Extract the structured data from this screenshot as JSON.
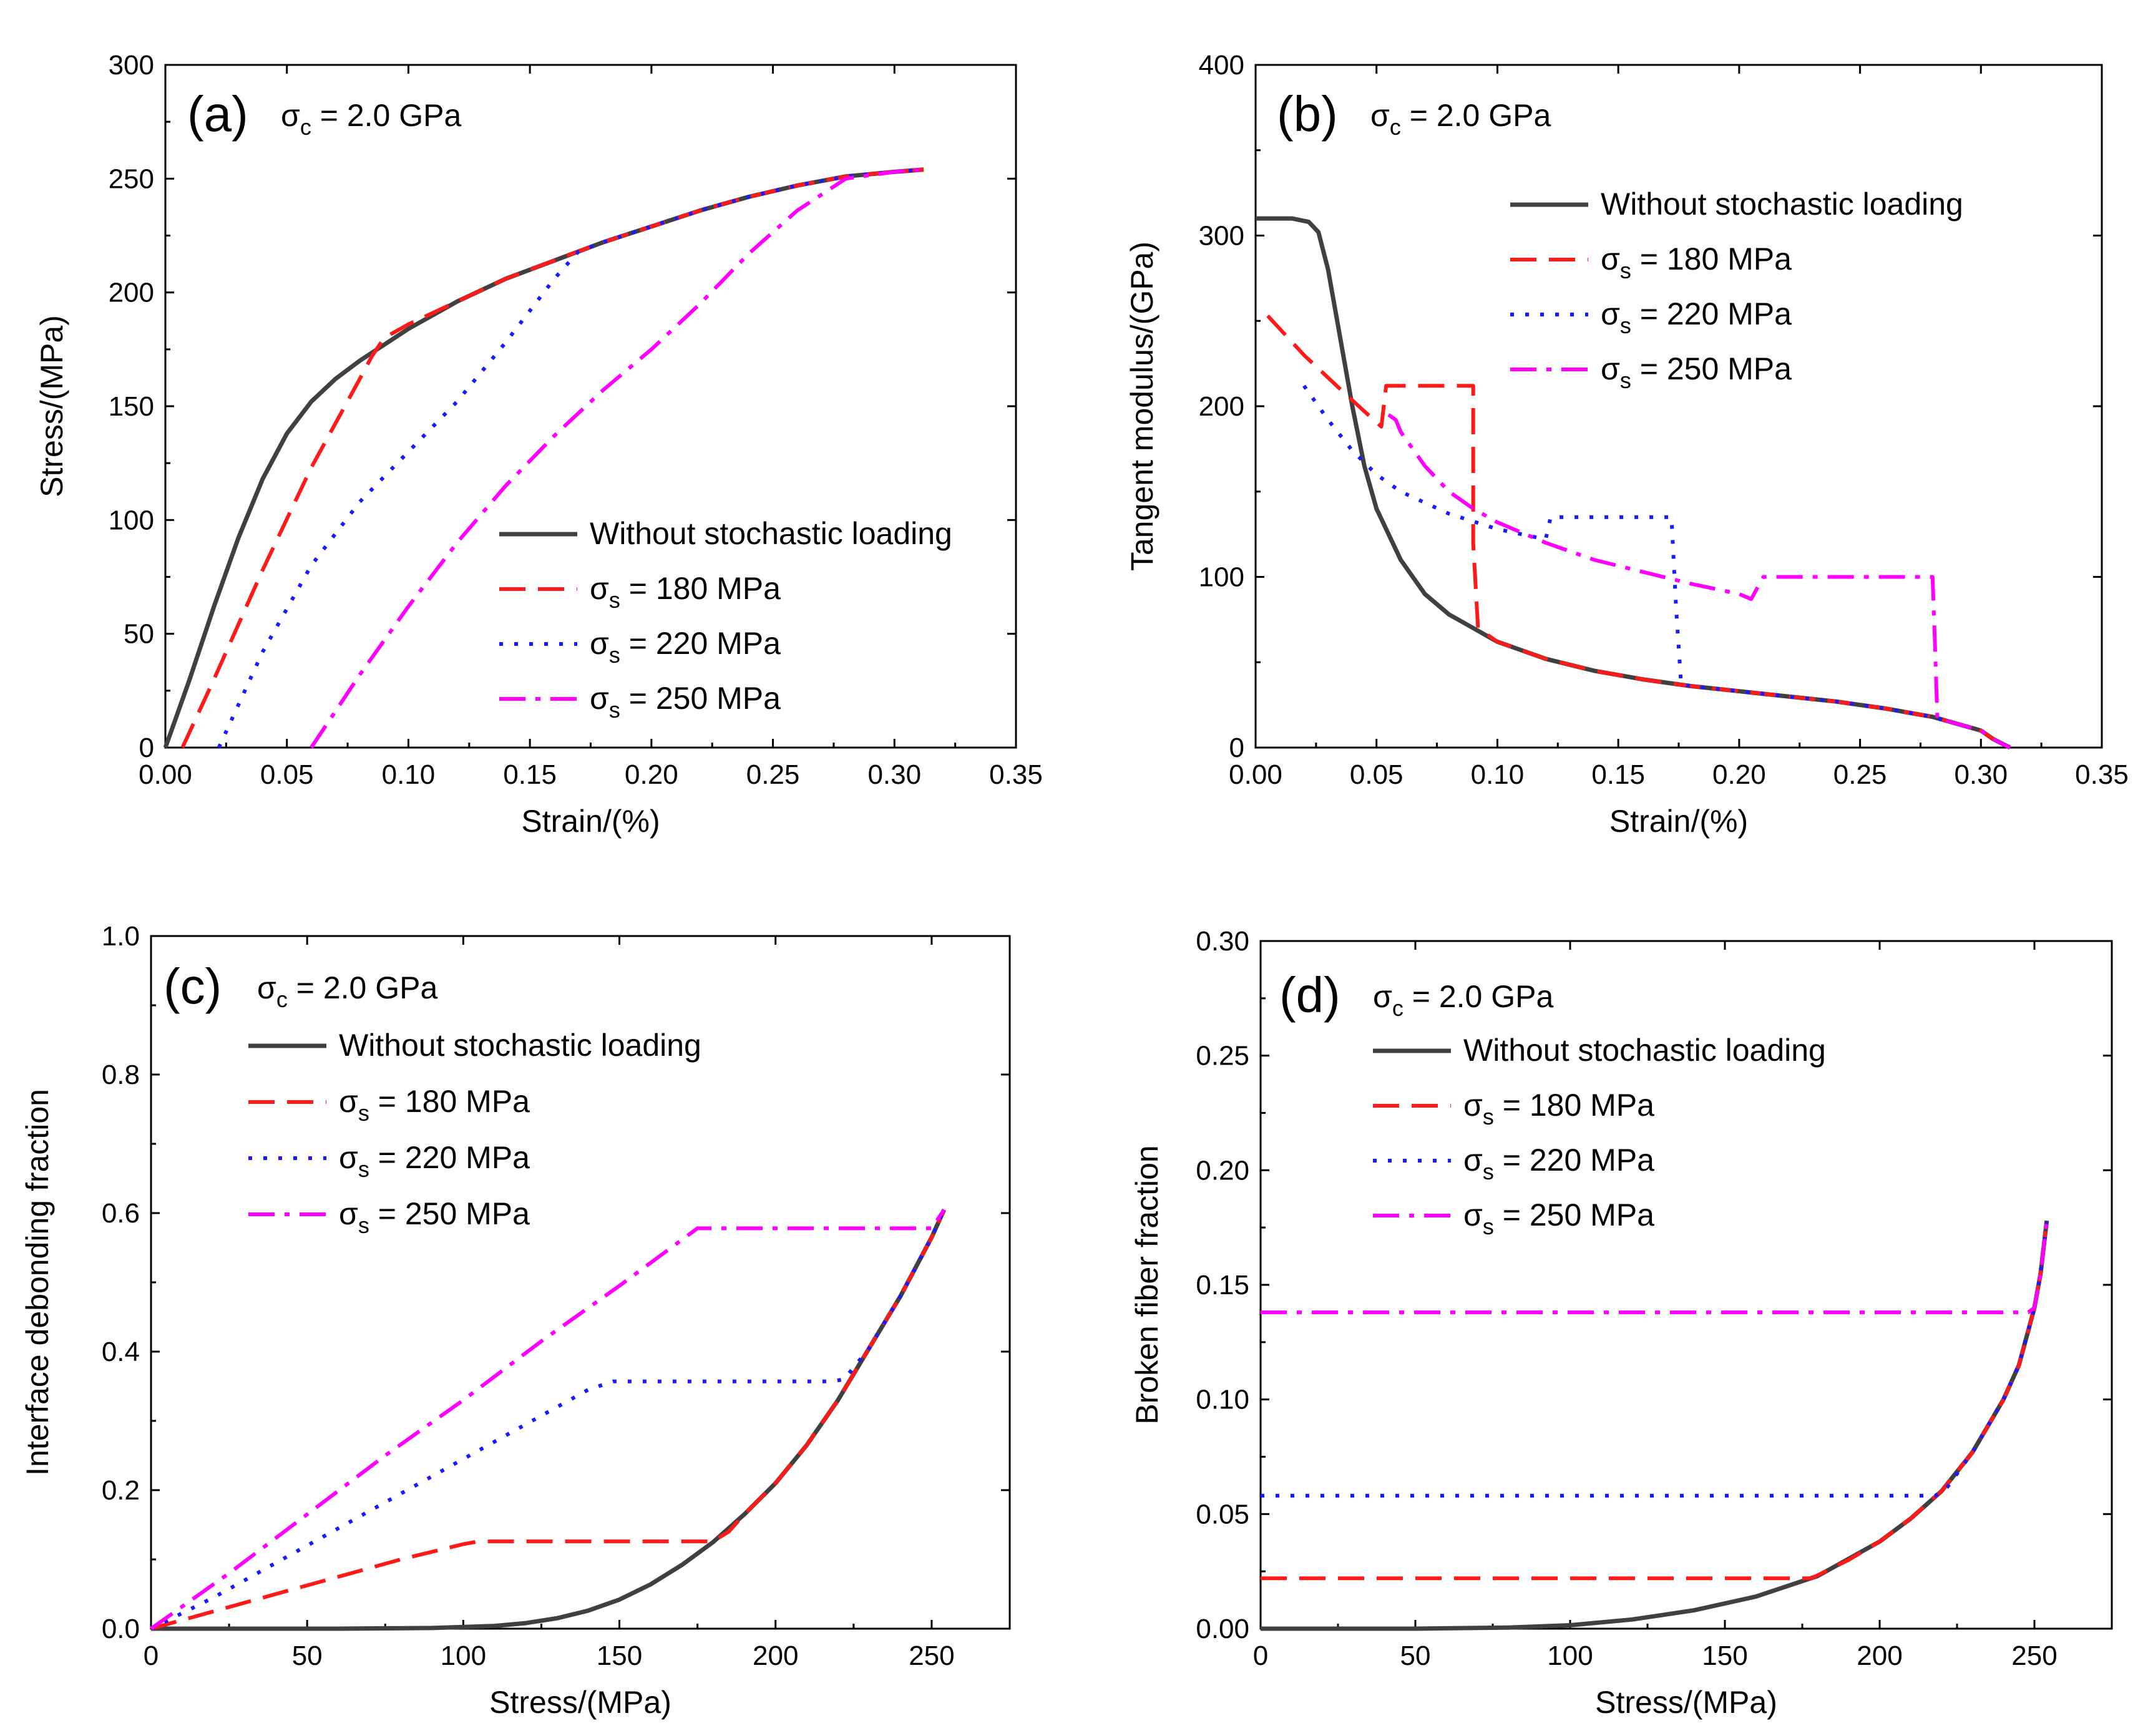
{
  "chart_data": [
    {
      "type": "line",
      "panel": "(a)",
      "annotation": "σc = 2.0 GPa",
      "xlabel": "Strain/(%)",
      "ylabel": "Stress/(MPa)",
      "xlim": [
        0,
        0.35
      ],
      "ylim": [
        0,
        300
      ],
      "xticks": [
        "0.00",
        "0.05",
        "0.10",
        "0.15",
        "0.20",
        "0.25",
        "0.30",
        "0.35"
      ],
      "yticks": [
        "0",
        "50",
        "100",
        "150",
        "200",
        "250",
        "300"
      ],
      "legend_position": "lower-right",
      "series": [
        {
          "name": "Without stochastic loading",
          "color": "#404040",
          "dash": "solid",
          "x": [
            0,
            0.005,
            0.01,
            0.02,
            0.03,
            0.04,
            0.05,
            0.06,
            0.07,
            0.08,
            0.09,
            0.1,
            0.12,
            0.14,
            0.16,
            0.18,
            0.2,
            0.22,
            0.24,
            0.26,
            0.28,
            0.3,
            0.312
          ],
          "y": [
            0,
            15,
            30,
            62,
            92,
            118,
            138,
            152,
            162,
            170,
            177,
            184,
            196,
            206,
            214,
            222,
            229,
            236,
            242,
            247,
            251,
            253,
            254
          ]
        },
        {
          "name": "σs = 180 MPa",
          "color": "#ff1a1a",
          "dash": "dash",
          "x": [
            0.007,
            0.02,
            0.04,
            0.06,
            0.08,
            0.085,
            0.09,
            0.1,
            0.12,
            0.14,
            0.16,
            0.18,
            0.2,
            0.22,
            0.24,
            0.26,
            0.28,
            0.3,
            0.312
          ],
          "y": [
            0,
            30,
            78,
            123,
            162,
            172,
            180,
            186,
            196,
            206,
            214,
            222,
            229,
            236,
            242,
            247,
            251,
            253,
            254
          ]
        },
        {
          "name": "σs = 220 MPa",
          "color": "#1a1aff",
          "dash": "dot",
          "x": [
            0.022,
            0.04,
            0.06,
            0.08,
            0.1,
            0.12,
            0.14,
            0.16,
            0.17,
            0.18,
            0.2,
            0.22,
            0.24,
            0.26,
            0.28,
            0.3,
            0.312
          ],
          "y": [
            0,
            42,
            80,
            108,
            130,
            152,
            178,
            206,
            218,
            222,
            229,
            236,
            242,
            247,
            251,
            253,
            254
          ]
        },
        {
          "name": "σs = 250 MPa",
          "color": "#ff00ff",
          "dash": "dashdot",
          "x": [
            0.06,
            0.08,
            0.1,
            0.12,
            0.14,
            0.16,
            0.18,
            0.2,
            0.22,
            0.24,
            0.26,
            0.28,
            0.3,
            0.312
          ],
          "y": [
            0,
            32,
            62,
            90,
            115,
            137,
            157,
            175,
            195,
            217,
            236,
            250,
            253,
            254
          ]
        }
      ]
    },
    {
      "type": "line",
      "panel": "(b)",
      "annotation": "σc = 2.0 GPa",
      "xlabel": "Strain/(%)",
      "ylabel": "Tangent modulus/(GPa)",
      "xlim": [
        0,
        0.35
      ],
      "ylim": [
        0,
        400
      ],
      "xticks": [
        "0.00",
        "0.05",
        "0.10",
        "0.15",
        "0.20",
        "0.25",
        "0.30",
        "0.35"
      ],
      "yticks": [
        "0",
        "100",
        "200",
        "300",
        "400"
      ],
      "legend_position": "top-right",
      "series": [
        {
          "name": "Without stochastic loading",
          "color": "#404040",
          "dash": "solid",
          "x": [
            0,
            0.015,
            0.022,
            0.026,
            0.03,
            0.035,
            0.04,
            0.045,
            0.05,
            0.06,
            0.07,
            0.08,
            0.09,
            0.1,
            0.12,
            0.14,
            0.16,
            0.18,
            0.2,
            0.22,
            0.24,
            0.26,
            0.28,
            0.3,
            0.305,
            0.312
          ],
          "y": [
            310,
            310,
            308,
            302,
            280,
            240,
            200,
            165,
            140,
            110,
            90,
            78,
            70,
            62,
            52,
            45,
            40,
            36,
            33,
            30,
            27,
            23,
            18,
            10,
            5,
            0
          ]
        },
        {
          "name": "σs = 180 MPa",
          "color": "#ff1a1a",
          "dash": "dash",
          "x": [
            0.005,
            0.02,
            0.035,
            0.045,
            0.052,
            0.054,
            0.057,
            0.065,
            0.08,
            0.09,
            0.09,
            0.092,
            0.1,
            0.12,
            0.14,
            0.16,
            0.18,
            0.2,
            0.22,
            0.24,
            0.26,
            0.28,
            0.3,
            0.305,
            0.312
          ],
          "y": [
            253,
            230,
            210,
            197,
            188,
            212,
            212,
            212,
            212,
            212,
            120,
            70,
            62,
            52,
            45,
            40,
            36,
            33,
            30,
            27,
            23,
            18,
            10,
            5,
            0
          ]
        },
        {
          "name": "σs = 220 MPa",
          "color": "#1a1aff",
          "dash": "dot",
          "x": [
            0.02,
            0.03,
            0.04,
            0.05,
            0.06,
            0.08,
            0.1,
            0.12,
            0.122,
            0.14,
            0.16,
            0.172,
            0.174,
            0.176,
            0.18,
            0.2,
            0.22,
            0.24,
            0.26,
            0.28,
            0.3,
            0.305,
            0.312
          ],
          "y": [
            212,
            192,
            174,
            160,
            150,
            137,
            128,
            122,
            135,
            135,
            135,
            135,
            80,
            37,
            36,
            33,
            30,
            27,
            23,
            18,
            10,
            5,
            0
          ]
        },
        {
          "name": "σs = 250 MPa",
          "color": "#ff00ff",
          "dash": "dashdot",
          "x": [
            0.055,
            0.058,
            0.06,
            0.07,
            0.08,
            0.09,
            0.1,
            0.12,
            0.14,
            0.16,
            0.18,
            0.2,
            0.205,
            0.21,
            0.24,
            0.26,
            0.28,
            0.281,
            0.282,
            0.29,
            0.3,
            0.305,
            0.312
          ],
          "y": [
            195,
            192,
            185,
            165,
            150,
            140,
            132,
            120,
            110,
            103,
            96,
            90,
            87,
            100,
            100,
            100,
            100,
            60,
            17,
            14,
            10,
            5,
            0
          ]
        }
      ]
    },
    {
      "type": "line",
      "panel": "(c)",
      "annotation": "σc = 2.0 GPa",
      "xlabel": "Stress/(MPa)",
      "ylabel": "Interface debonding fraction",
      "xlim": [
        0,
        275
      ],
      "ylim": [
        0,
        1.0
      ],
      "xticks": [
        "0",
        "50",
        "100",
        "150",
        "200",
        "250"
      ],
      "yticks": [
        "0.0",
        "0.2",
        "0.4",
        "0.6",
        "0.8",
        "1.0"
      ],
      "legend_position": "top-left",
      "series": [
        {
          "name": "Without stochastic loading",
          "color": "#404040",
          "dash": "solid",
          "x": [
            0,
            60,
            90,
            110,
            120,
            130,
            140,
            150,
            160,
            170,
            180,
            190,
            200,
            210,
            220,
            230,
            240,
            250,
            254
          ],
          "y": [
            0,
            0,
            0.001,
            0.004,
            0.008,
            0.015,
            0.026,
            0.042,
            0.064,
            0.092,
            0.125,
            0.165,
            0.21,
            0.265,
            0.33,
            0.405,
            0.48,
            0.565,
            0.605
          ]
        },
        {
          "name": "σs = 180 MPa",
          "color": "#ff1a1a",
          "dash": "dash",
          "x": [
            0,
            20,
            40,
            60,
            80,
            100,
            105,
            120,
            140,
            160,
            180,
            185,
            190,
            200,
            210,
            220,
            230,
            240,
            250,
            254
          ],
          "y": [
            0,
            0.025,
            0.05,
            0.075,
            0.1,
            0.122,
            0.126,
            0.126,
            0.126,
            0.126,
            0.126,
            0.14,
            0.165,
            0.21,
            0.265,
            0.33,
            0.405,
            0.48,
            0.565,
            0.605
          ]
        },
        {
          "name": "σs = 220 MPa",
          "color": "#1a1aff",
          "dash": "dot",
          "x": [
            0,
            20,
            40,
            60,
            80,
            100,
            120,
            140,
            148,
            160,
            180,
            200,
            218,
            222,
            230,
            240,
            250,
            254
          ],
          "y": [
            0,
            0.045,
            0.095,
            0.145,
            0.195,
            0.245,
            0.295,
            0.345,
            0.357,
            0.357,
            0.357,
            0.357,
            0.357,
            0.36,
            0.405,
            0.48,
            0.565,
            0.605
          ]
        },
        {
          "name": "σs = 250 MPa",
          "color": "#ff00ff",
          "dash": "dashdot",
          "x": [
            0,
            25,
            50,
            75,
            100,
            125,
            150,
            175,
            180,
            200,
            220,
            240,
            250,
            254
          ],
          "y": [
            0,
            0.08,
            0.165,
            0.25,
            0.33,
            0.415,
            0.495,
            0.578,
            0.578,
            0.578,
            0.578,
            0.578,
            0.578,
            0.605
          ]
        }
      ]
    },
    {
      "type": "line",
      "panel": "(d)",
      "annotation": "σc = 2.0 GPa",
      "xlabel": "Stress/(MPa)",
      "ylabel": "Broken fiber fraction",
      "xlim": [
        0,
        275
      ],
      "ylim": [
        0,
        0.3
      ],
      "xticks": [
        "0",
        "50",
        "100",
        "150",
        "200",
        "250"
      ],
      "yticks": [
        "0.00",
        "0.05",
        "0.10",
        "0.15",
        "0.20",
        "0.25",
        "0.30"
      ],
      "legend_position": "top-left",
      "series": [
        {
          "name": "Without stochastic loading",
          "color": "#404040",
          "dash": "solid",
          "x": [
            0,
            50,
            80,
            100,
            120,
            140,
            160,
            180,
            200,
            210,
            220,
            230,
            240,
            245,
            250,
            252,
            254
          ],
          "y": [
            0,
            0,
            0.0005,
            0.0015,
            0.004,
            0.008,
            0.014,
            0.023,
            0.038,
            0.048,
            0.06,
            0.077,
            0.1,
            0.115,
            0.14,
            0.155,
            0.178
          ]
        },
        {
          "name": "σs = 180 MPa",
          "color": "#ff1a1a",
          "dash": "dash",
          "x": [
            0,
            60,
            120,
            170,
            178,
            190,
            200,
            210,
            220,
            230,
            240,
            245,
            250,
            252,
            254
          ],
          "y": [
            0.022,
            0.022,
            0.022,
            0.022,
            0.022,
            0.03,
            0.038,
            0.048,
            0.06,
            0.077,
            0.1,
            0.115,
            0.14,
            0.155,
            0.178
          ]
        },
        {
          "name": "σs = 220 MPa",
          "color": "#1a1aff",
          "dash": "dot",
          "x": [
            0,
            60,
            120,
            180,
            218,
            222,
            230,
            240,
            245,
            250,
            252,
            254
          ],
          "y": [
            0.058,
            0.058,
            0.058,
            0.058,
            0.058,
            0.062,
            0.077,
            0.1,
            0.115,
            0.14,
            0.155,
            0.178
          ]
        },
        {
          "name": "σs = 250 MPa",
          "color": "#ff00ff",
          "dash": "dashdot",
          "x": [
            0,
            60,
            120,
            180,
            240,
            248,
            250,
            252,
            254
          ],
          "y": [
            0.138,
            0.138,
            0.138,
            0.138,
            0.138,
            0.138,
            0.14,
            0.155,
            0.178
          ]
        }
      ]
    }
  ]
}
